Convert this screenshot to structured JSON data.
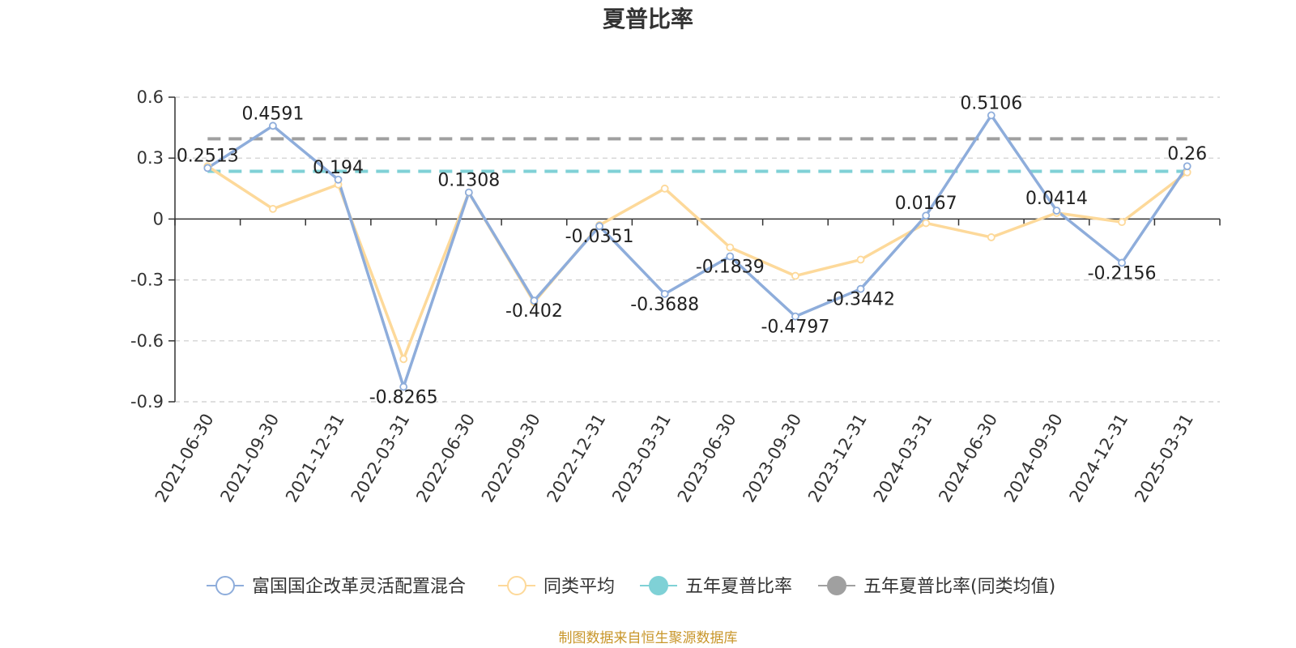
{
  "chart_data": {
    "type": "line",
    "title": "夏普比率",
    "xlabel": "",
    "ylabel": "",
    "ylim": [
      -0.9,
      0.6
    ],
    "yticks": [
      "0.6",
      "0.3",
      "0",
      "-0.3",
      "-0.6",
      "-0.9"
    ],
    "ytick_values": [
      0.6,
      0.3,
      0,
      -0.3,
      -0.6,
      -0.9
    ],
    "grid": true,
    "legend_position": "bottom",
    "categories": [
      "2021-06-30",
      "2021-09-30",
      "2021-12-31",
      "2022-03-31",
      "2022-06-30",
      "2022-09-30",
      "2022-12-31",
      "2023-03-31",
      "2023-06-30",
      "2023-09-30",
      "2023-12-31",
      "2024-03-31",
      "2024-06-30",
      "2024-09-30",
      "2024-12-31",
      "2025-03-31"
    ],
    "series": [
      {
        "name": "富国国企改革灵活配置混合",
        "color": "#8eaddb",
        "values": [
          0.2513,
          0.4591,
          0.194,
          -0.8265,
          0.1308,
          -0.402,
          -0.0351,
          -0.3688,
          -0.1839,
          -0.4797,
          -0.3442,
          0.0167,
          0.5106,
          0.0414,
          -0.2156,
          0.26
        ],
        "labels": [
          "0.2513",
          "0.4591",
          "0.194",
          "-0.8265",
          "0.1308",
          "-0.402",
          "-0.0351",
          "-0.3688",
          "-0.1839",
          "-0.4797",
          "-0.3442",
          "0.0167",
          "0.5106",
          "0.0414",
          "-0.2156",
          "0.26"
        ]
      },
      {
        "name": "同类平均",
        "color": "#fdd99a",
        "values": [
          0.26,
          0.05,
          0.17,
          -0.69,
          0.13,
          -0.41,
          -0.03,
          0.15,
          -0.14,
          -0.28,
          -0.2,
          -0.02,
          -0.09,
          0.03,
          -0.015,
          0.23
        ]
      },
      {
        "name": "五年夏普比率",
        "color": "#7fd1d6",
        "constant": 0.235
      },
      {
        "name": "五年夏普比率(同类均值)",
        "color": "#a0a0a0",
        "constant": 0.395
      }
    ]
  },
  "source_text": "制图数据来自恒生聚源数据库"
}
